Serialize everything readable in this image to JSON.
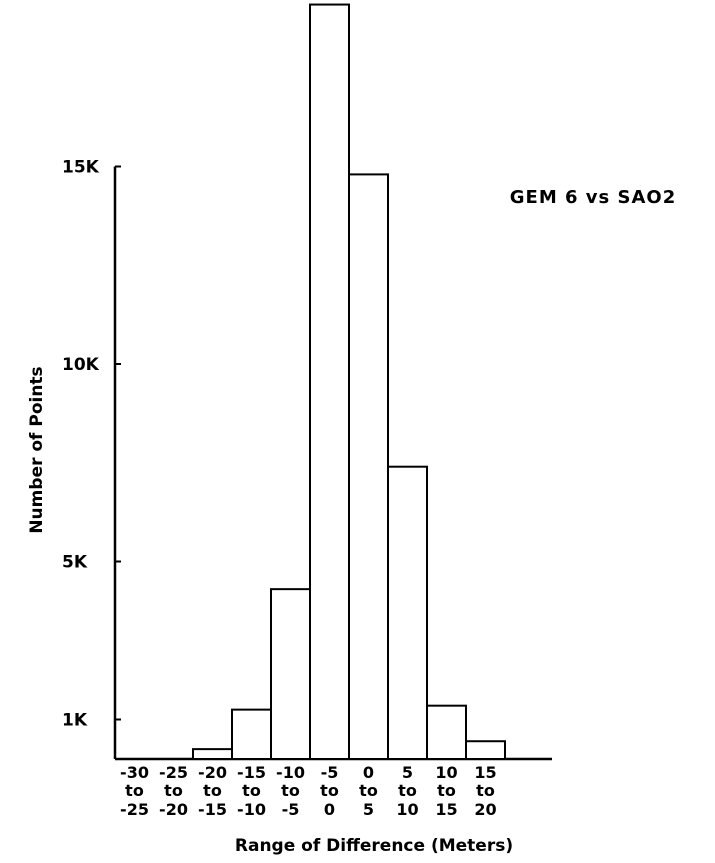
{
  "chart_data": {
    "type": "bar",
    "categories": [
      [
        "-30",
        "to",
        "-25"
      ],
      [
        "-25",
        "to",
        "-20"
      ],
      [
        "-20",
        "to",
        "-15"
      ],
      [
        "-15",
        "to",
        "-10"
      ],
      [
        "-10",
        "to",
        "-5"
      ],
      [
        "-5",
        "to",
        "0"
      ],
      [
        "0",
        "to",
        "5"
      ],
      [
        "5",
        "to",
        "10"
      ],
      [
        "10",
        "to",
        "15"
      ],
      [
        "15",
        "to",
        "20"
      ]
    ],
    "values": [
      0,
      0,
      250,
      1250,
      4300,
      19100,
      14800,
      7400,
      1350,
      450
    ],
    "xlabel": "Range of Difference (Meters)",
    "ylabel": "Number of Points",
    "yticks": [
      {
        "value": 1000,
        "label": "1K"
      },
      {
        "value": 5000,
        "label": "5K"
      },
      {
        "value": 10000,
        "label": "10K"
      },
      {
        "value": 15000,
        "label": "15K"
      }
    ],
    "ylim": [
      0,
      19200
    ],
    "annotation": "GEM 6 vs SAO2",
    "grid": false
  }
}
